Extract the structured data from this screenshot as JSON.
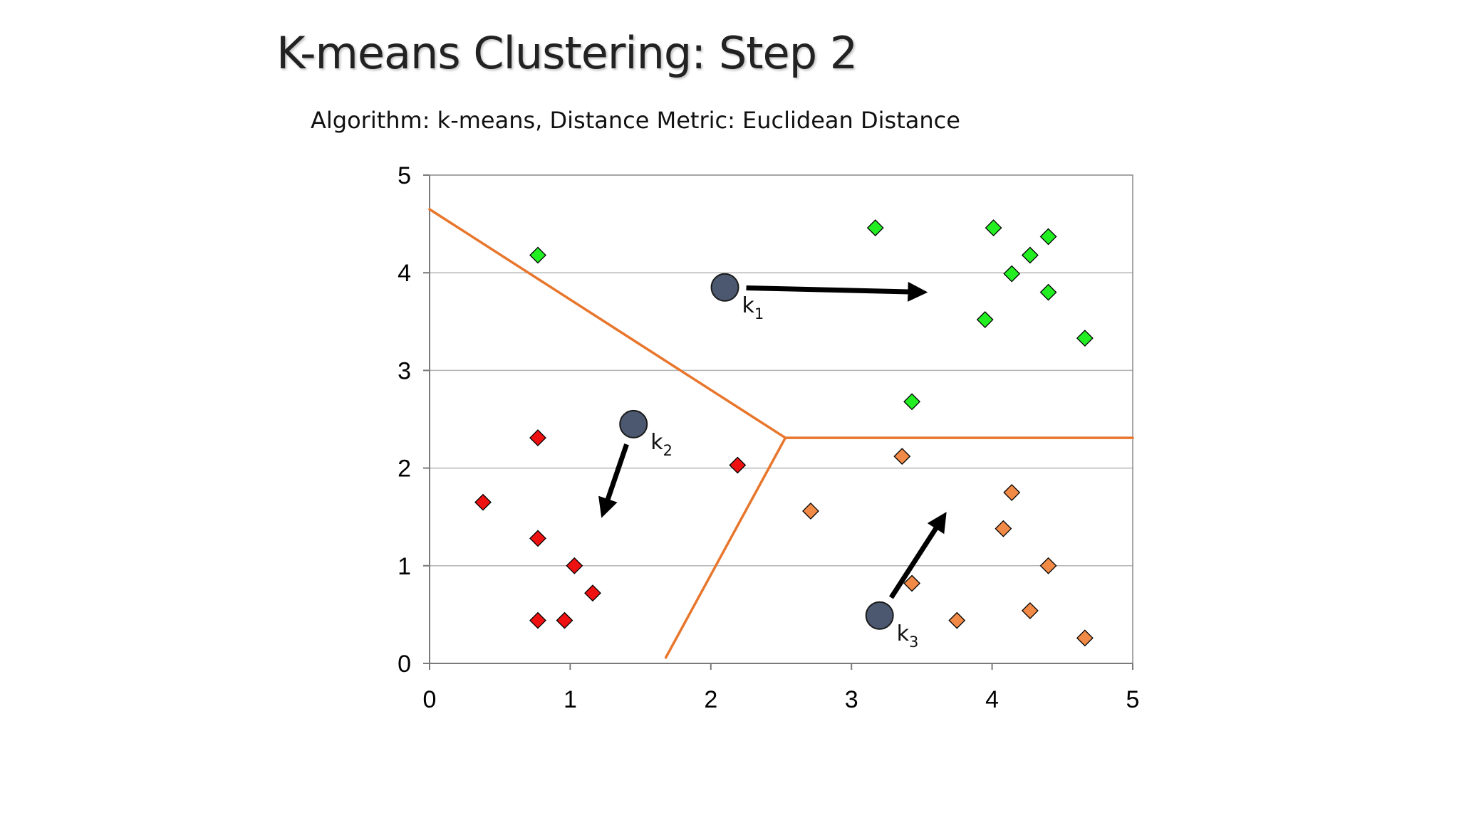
{
  "slide": {
    "title": "K-means Clustering: Step 2",
    "subtitle": "Algorithm: k-means, Distance Metric: Euclidean Distance"
  },
  "colors": {
    "background": "#ffffff",
    "boundary": "#e8762c",
    "cluster_green": "#22ee22",
    "cluster_red": "#ee1111",
    "cluster_orange": "#f08a46",
    "centroid": "#4b5870",
    "arrow": "#000000",
    "gridline": "#b5b5b5"
  },
  "chart_data": {
    "type": "scatter",
    "xlim": [
      0,
      5
    ],
    "ylim": [
      0,
      5
    ],
    "xticks": [
      0,
      1,
      2,
      3,
      4,
      5
    ],
    "yticks": [
      0,
      1,
      2,
      3,
      4,
      5
    ],
    "grid": "horizontal",
    "series": [
      {
        "color_key": "cluster_green",
        "marker": "diamond",
        "points": [
          [
            0.77,
            4.18
          ],
          [
            3.17,
            4.46
          ],
          [
            4.01,
            4.46
          ],
          [
            4.27,
            4.18
          ],
          [
            4.4,
            4.37
          ],
          [
            4.14,
            3.99
          ],
          [
            4.4,
            3.8
          ],
          [
            3.95,
            3.52
          ],
          [
            4.66,
            3.33
          ],
          [
            3.43,
            2.68
          ]
        ]
      },
      {
        "color_key": "cluster_red",
        "marker": "diamond",
        "points": [
          [
            0.77,
            2.31
          ],
          [
            0.38,
            1.65
          ],
          [
            0.77,
            1.28
          ],
          [
            1.03,
            1.0
          ],
          [
            1.16,
            0.72
          ],
          [
            0.77,
            0.44
          ],
          [
            0.96,
            0.44
          ],
          [
            2.19,
            2.03
          ]
        ]
      },
      {
        "color_key": "cluster_orange",
        "marker": "diamond",
        "points": [
          [
            3.36,
            2.12
          ],
          [
            2.71,
            1.56
          ],
          [
            4.14,
            1.75
          ],
          [
            4.08,
            1.38
          ],
          [
            4.4,
            1.0
          ],
          [
            3.43,
            0.82
          ],
          [
            3.75,
            0.44
          ],
          [
            4.27,
            0.54
          ],
          [
            4.66,
            0.26
          ]
        ]
      }
    ],
    "centroids": [
      {
        "name": "k",
        "sub": "1",
        "x": 2.1,
        "y": 3.85,
        "arrow_to": [
          3.55,
          3.8
        ]
      },
      {
        "name": "k",
        "sub": "2",
        "x": 1.45,
        "y": 2.45,
        "arrow_to": [
          1.22,
          1.48
        ]
      },
      {
        "name": "k",
        "sub": "3",
        "x": 3.2,
        "y": 0.49,
        "arrow_to": [
          3.68,
          1.56
        ]
      }
    ],
    "boundaries": [
      [
        [
          0.0,
          4.65
        ],
        [
          2.53,
          2.31
        ]
      ],
      [
        [
          2.53,
          2.31
        ],
        [
          5.0,
          2.31
        ]
      ],
      [
        [
          2.53,
          2.31
        ],
        [
          1.68,
          0.06
        ]
      ]
    ]
  }
}
